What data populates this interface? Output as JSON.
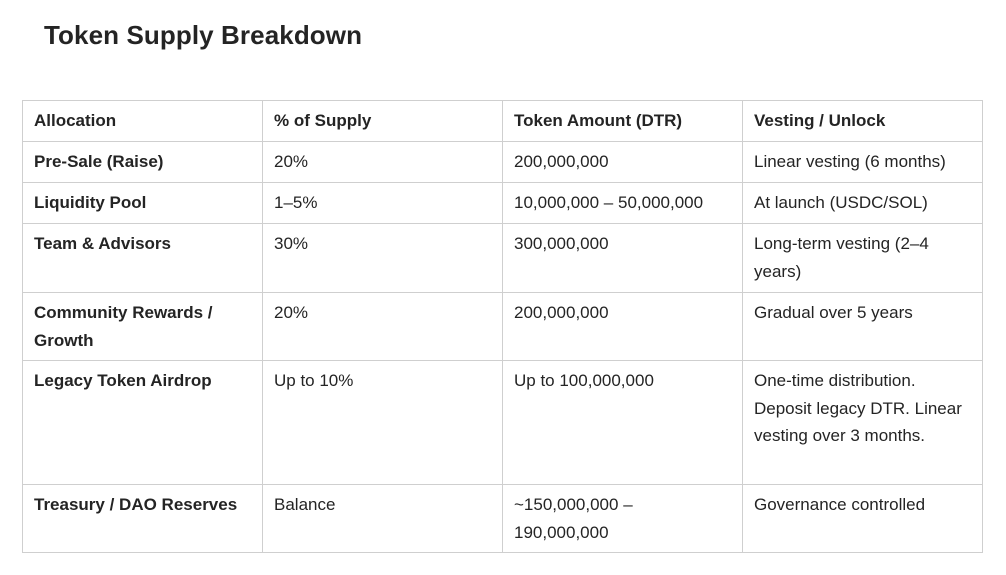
{
  "title": "Token Supply Breakdown",
  "table": {
    "headers": [
      "Allocation",
      "% of Supply",
      "Token Amount (DTR)",
      "Vesting / Unlock"
    ],
    "rows": [
      [
        "Pre-Sale (Raise)",
        "20%",
        "200,000,000",
        "Linear vesting (6 months)"
      ],
      [
        "Liquidity Pool",
        "1–5%",
        "10,000,000 – 50,000,000",
        "At launch (USDC/SOL)"
      ],
      [
        "Team & Advisors",
        "30%",
        "300,000,000",
        "Long-term vesting (2–4 years)"
      ],
      [
        "Community Rewards / Growth",
        "20%",
        "200,000,000",
        "Gradual over 5 years"
      ],
      [
        "Legacy Token Airdrop",
        "Up to 10%",
        "Up to 100,000,000",
        "One-time distribution. Deposit legacy DTR. Linear vesting over 3 months."
      ],
      [
        "Treasury / DAO Reserves",
        "Balance",
        "~150,000,000 – 190,000,000",
        "Governance controlled"
      ]
    ]
  }
}
